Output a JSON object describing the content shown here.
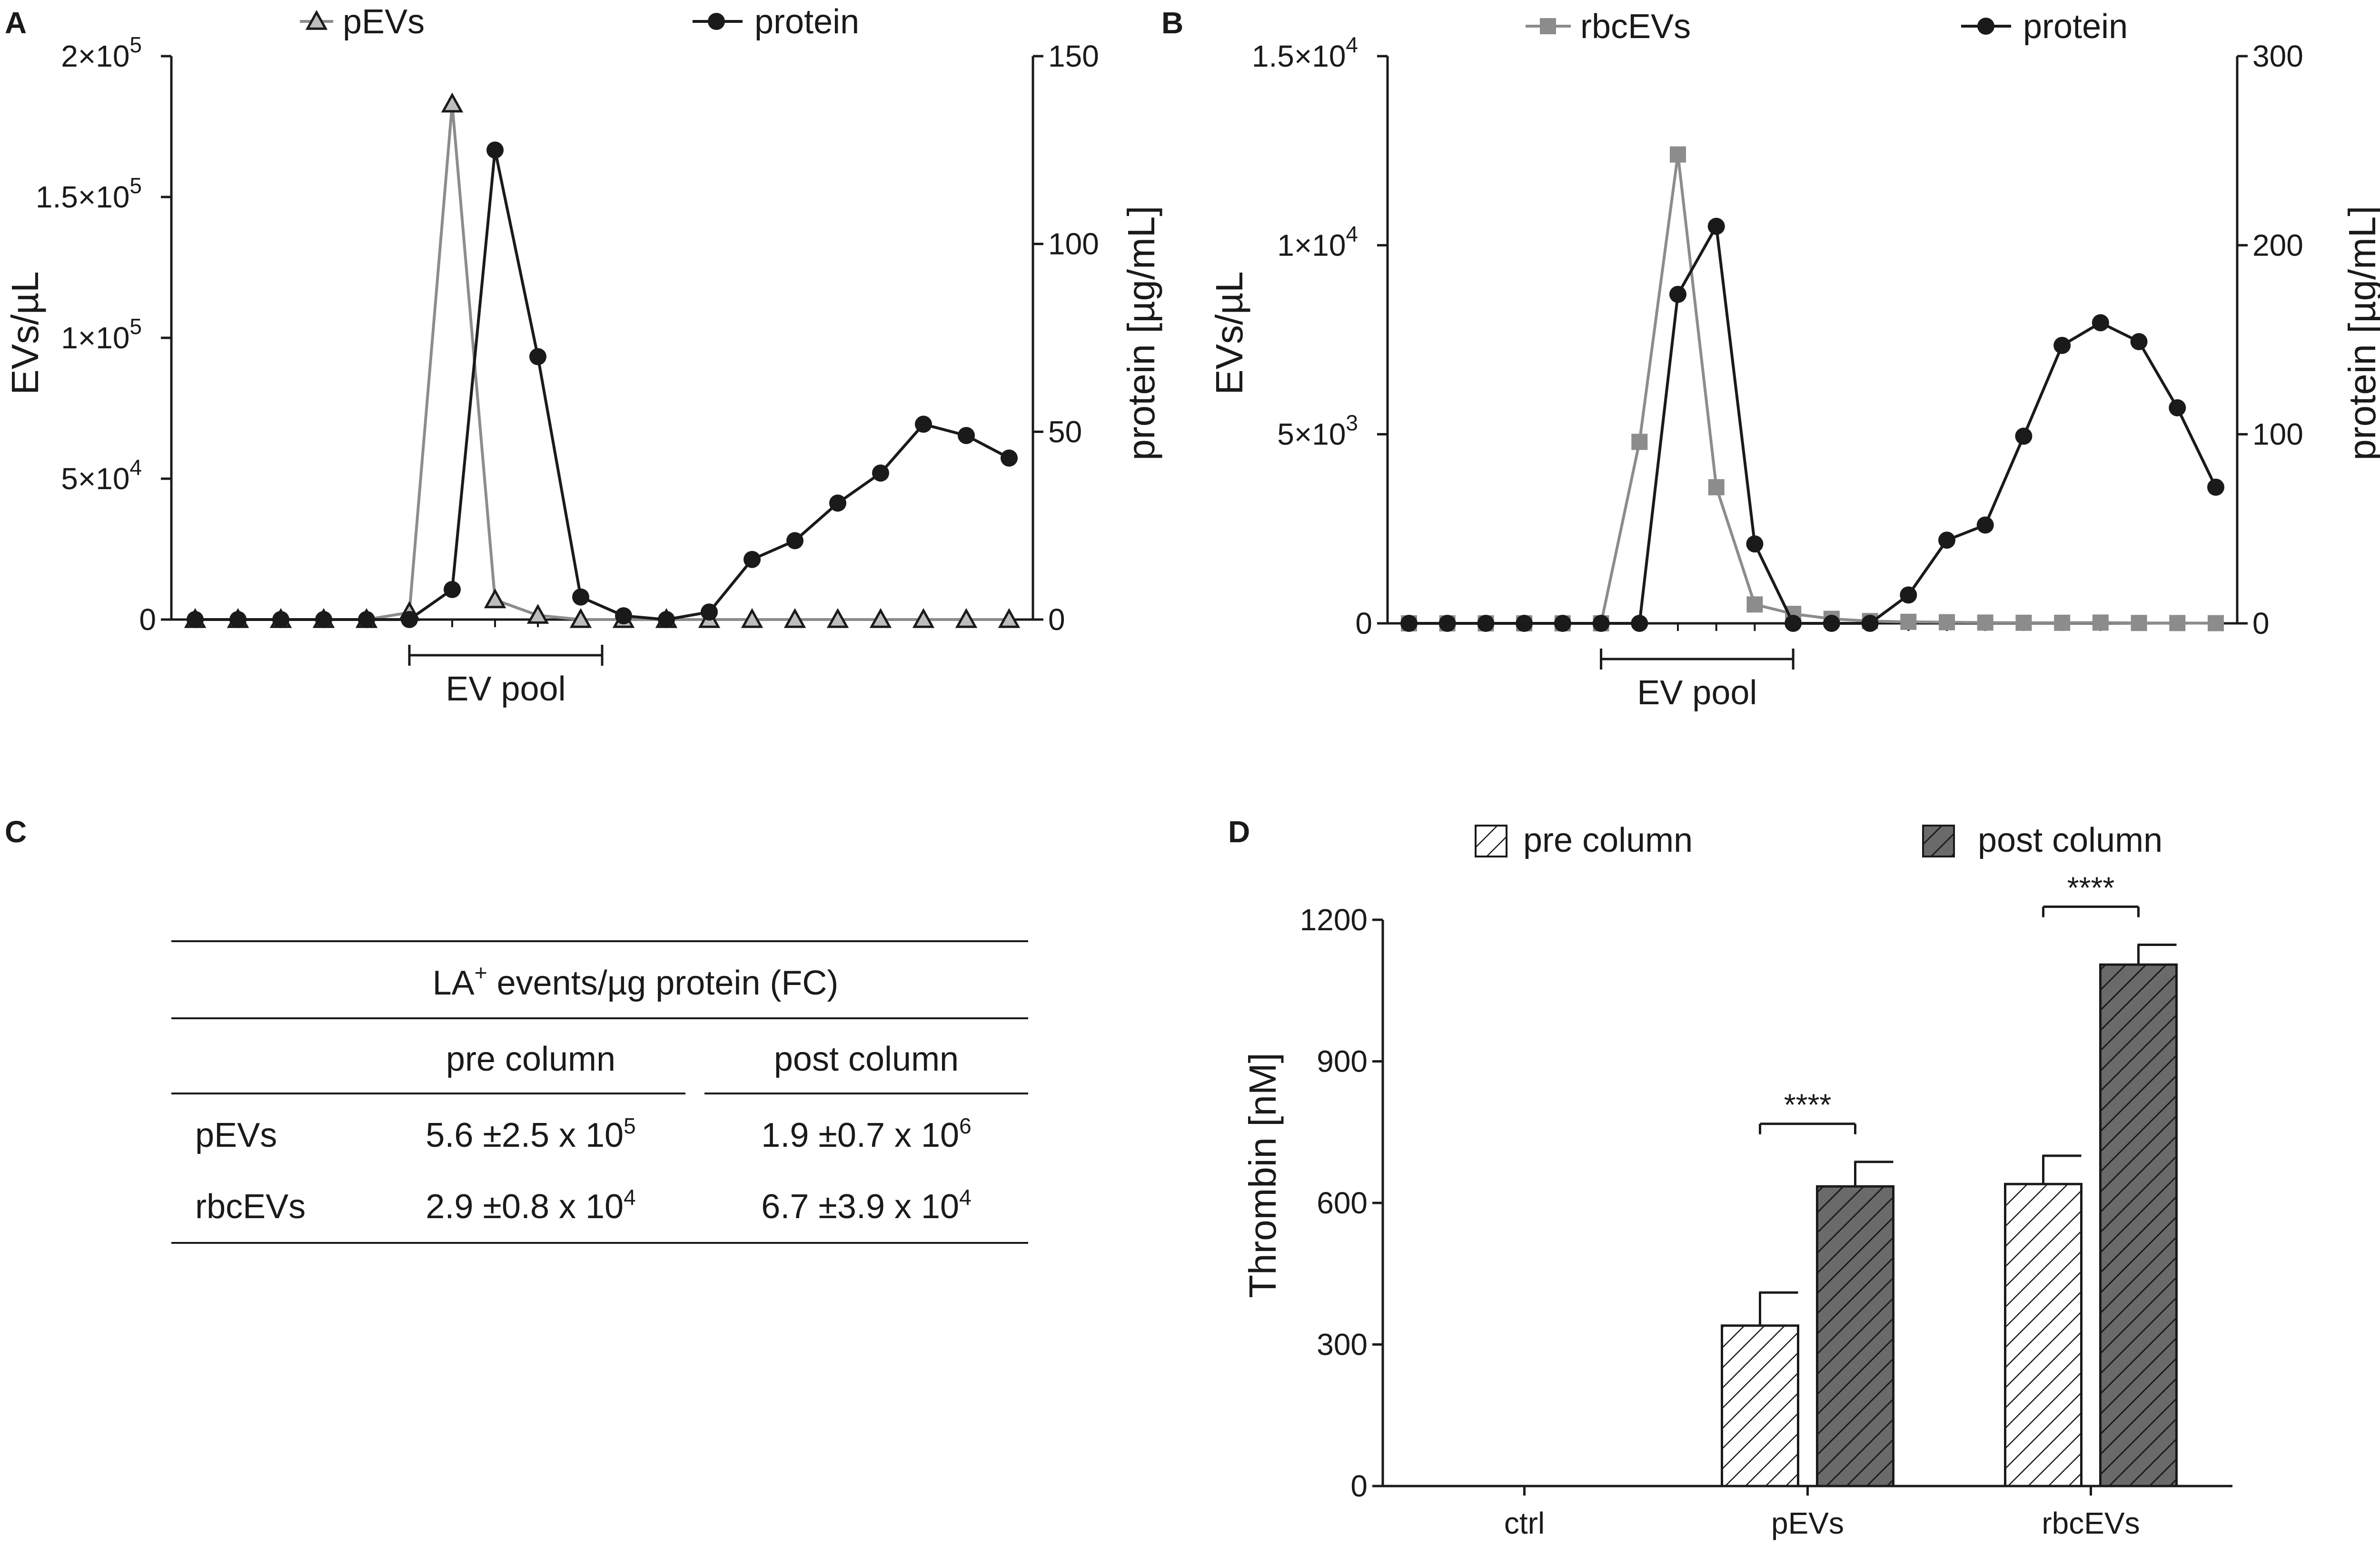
{
  "panels": {
    "A": "A",
    "B": "B",
    "C": "C",
    "D": "D"
  },
  "colors": {
    "black": "#1a1a1a",
    "gray": "#8c8c8c",
    "hatch_light": "#ffffff",
    "hatch_dark": "#666666"
  },
  "chart_data": [
    {
      "id": "A",
      "type": "line",
      "title": "",
      "xlabel": "",
      "ylabel": "EVs/µL",
      "y2label": "protein [µg/mL]",
      "x": [
        1,
        2,
        3,
        4,
        5,
        6,
        7,
        8,
        9,
        10,
        11,
        12,
        13,
        14,
        15,
        16,
        17,
        18,
        19,
        20
      ],
      "ylim": [
        0,
        200000
      ],
      "y2lim": [
        0,
        150
      ],
      "yticks": [
        {
          "v": 0,
          "m": "0",
          "e": ""
        },
        {
          "v": 50000,
          "m": "5×10",
          "e": "4"
        },
        {
          "v": 100000,
          "m": "1×10",
          "e": "5"
        },
        {
          "v": 150000,
          "m": "1.5×10",
          "e": "5"
        },
        {
          "v": 200000,
          "m": "2×10",
          "e": "5"
        }
      ],
      "y2ticks": [
        "0",
        "50",
        "100",
        "150"
      ],
      "y2tick_values": [
        0,
        50,
        100,
        150
      ],
      "series": [
        {
          "name": "pEVs",
          "axis": "left",
          "marker": "triangle",
          "color": "#8c8c8c",
          "values": [
            0,
            0,
            0,
            0,
            0,
            2500,
            183000,
            7000,
            1500,
            0,
            0,
            0,
            0,
            0,
            0,
            0,
            0,
            0,
            0,
            0
          ]
        },
        {
          "name": "protein",
          "axis": "right",
          "marker": "circle",
          "color": "#1a1a1a",
          "values": [
            0,
            0,
            0,
            0,
            0,
            0,
            8,
            125,
            70,
            6,
            1,
            0,
            2,
            16,
            21,
            31,
            39,
            52,
            49,
            43
          ]
        }
      ],
      "bracket": {
        "label": "EV pool",
        "from": 6,
        "to": 10.5
      }
    },
    {
      "id": "B",
      "type": "line",
      "title": "",
      "xlabel": "",
      "ylabel": "EVs/µL",
      "y2label": "protein [µg/mL]",
      "x": [
        1,
        2,
        3,
        4,
        5,
        6,
        7,
        8,
        9,
        10,
        11,
        12,
        13,
        14,
        15,
        16,
        17,
        18,
        19,
        20,
        21,
        22
      ],
      "ylim": [
        0,
        15000
      ],
      "y2lim": [
        0,
        300
      ],
      "yticks": [
        {
          "v": 0,
          "m": "0",
          "e": ""
        },
        {
          "v": 5000,
          "m": "5×10",
          "e": "3"
        },
        {
          "v": 10000,
          "m": "1×10",
          "e": "4"
        },
        {
          "v": 15000,
          "m": "1.5×10",
          "e": "4"
        }
      ],
      "y2ticks": [
        "0",
        "100",
        "200",
        "300"
      ],
      "y2tick_values": [
        0,
        100,
        200,
        300
      ],
      "series": [
        {
          "name": "rbcEVs",
          "axis": "left",
          "marker": "square",
          "color": "#8c8c8c",
          "values": [
            0,
            0,
            0,
            0,
            0,
            0,
            4800,
            12400,
            3600,
            500,
            250,
            120,
            60,
            40,
            30,
            20,
            15,
            15,
            20,
            10,
            8,
            5
          ]
        },
        {
          "name": "protein",
          "axis": "right",
          "marker": "circle",
          "color": "#1a1a1a",
          "values": [
            0,
            0,
            0,
            0,
            0,
            0,
            0,
            174,
            210,
            42,
            0,
            0,
            0,
            15,
            44,
            52,
            99,
            147,
            159,
            149,
            114,
            72
          ]
        }
      ],
      "bracket": {
        "label": "EV pool",
        "from": 6,
        "to": 11
      }
    },
    {
      "id": "D",
      "type": "bar",
      "title": "",
      "xlabel": "",
      "ylabel": "Thrombin [nM]",
      "categories": [
        "ctrl",
        "pEVs",
        "rbcEVs"
      ],
      "ylim": [
        0,
        1200
      ],
      "yticks": [
        0,
        300,
        600,
        900,
        1200
      ],
      "series": [
        {
          "name": "pre column",
          "pattern": "light",
          "values": [
            0,
            340,
            640
          ],
          "errors": [
            0,
            70,
            60
          ]
        },
        {
          "name": "post column",
          "pattern": "dark",
          "values": [
            0,
            635,
            1105
          ],
          "errors": [
            0,
            52,
            42
          ]
        }
      ],
      "significance": [
        {
          "category": "pEVs",
          "label": "****"
        },
        {
          "category": "rbcEVs",
          "label": "****"
        }
      ]
    }
  ],
  "table": {
    "header": "LA⁺ events/µg protein (FC)",
    "header_main": "LA",
    "header_sup": "+",
    "header_rest": " events/µg protein (FC)",
    "col1": "pre column",
    "col2": "post column",
    "rows": [
      {
        "label": "pEVs",
        "c1_main": "5.6 ±2.5 x 10",
        "c1_exp": "5",
        "c2_main": "1.9 ±0.7 x 10",
        "c2_exp": "6"
      },
      {
        "label": "rbcEVs",
        "c1_main": "2.9 ±0.8 x 10",
        "c1_exp": "4",
        "c2_main": "6.7 ±3.9 x 10",
        "c2_exp": "4"
      }
    ]
  }
}
